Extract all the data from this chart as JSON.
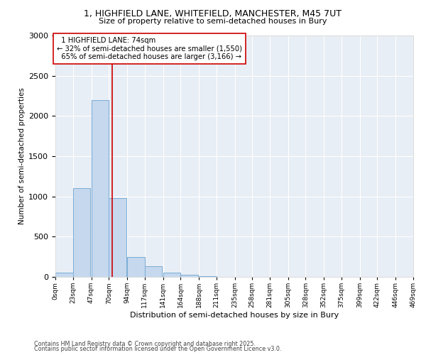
{
  "title_line1": "1, HIGHFIELD LANE, WHITEFIELD, MANCHESTER, M45 7UT",
  "title_line2": "Size of property relative to semi-detached houses in Bury",
  "xlabel": "Distribution of semi-detached houses by size in Bury",
  "ylabel": "Number of semi-detached properties",
  "bin_labels": [
    "0sqm",
    "23sqm",
    "47sqm",
    "70sqm",
    "94sqm",
    "117sqm",
    "141sqm",
    "164sqm",
    "188sqm",
    "211sqm",
    "235sqm",
    "258sqm",
    "281sqm",
    "305sqm",
    "328sqm",
    "352sqm",
    "375sqm",
    "399sqm",
    "422sqm",
    "446sqm",
    "469sqm"
  ],
  "bin_edges": [
    0,
    23,
    47,
    70,
    94,
    117,
    141,
    164,
    188,
    211,
    235,
    258,
    281,
    305,
    328,
    352,
    375,
    399,
    422,
    446,
    469
  ],
  "bar_heights": [
    50,
    1100,
    2200,
    980,
    250,
    130,
    55,
    30,
    10,
    0,
    0,
    0,
    0,
    0,
    0,
    0,
    0,
    0,
    0,
    0
  ],
  "bar_color": "#c5d8ee",
  "bar_edge_color": "#7aadd4",
  "property_size": 74,
  "property_label": "1 HIGHFIELD LANE: 74sqm",
  "pct_smaller": 32,
  "n_smaller": 1550,
  "pct_larger": 65,
  "n_larger": 3166,
  "vline_color": "#cc0000",
  "annotation_box_color": "#cc0000",
  "ylim": [
    0,
    3000
  ],
  "yticks": [
    0,
    500,
    1000,
    1500,
    2000,
    2500,
    3000
  ],
  "bg_color": "#e8eef5",
  "footnote1": "Contains HM Land Registry data © Crown copyright and database right 2025.",
  "footnote2": "Contains public sector information licensed under the Open Government Licence v3.0."
}
